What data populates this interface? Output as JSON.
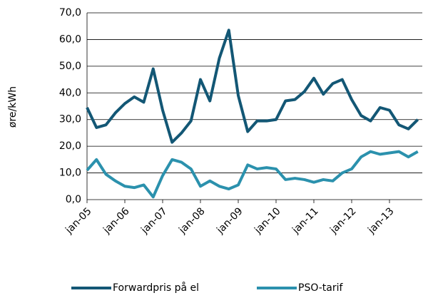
{
  "chart_data": {
    "type": "line",
    "y_label": "øre/kWh",
    "categories": [
      "jan-05",
      null,
      null,
      null,
      "jan-06",
      null,
      null,
      null,
      "jan-07",
      null,
      null,
      null,
      "jan-08",
      null,
      null,
      null,
      "jan-09",
      null,
      null,
      null,
      "jan-10",
      null,
      null,
      null,
      "jan-11",
      null,
      null,
      null,
      "jan-12",
      null,
      null,
      null,
      "jan-13",
      null,
      null,
      null
    ],
    "series": [
      {
        "name": "Forwardpris på el",
        "color": "#135775",
        "values": [
          34.5,
          27,
          28,
          32.5,
          36,
          38.5,
          36.5,
          49,
          33.5,
          21.5,
          25,
          29.5,
          45,
          37,
          53,
          63.5,
          39,
          25.5,
          29.5,
          29.5,
          30,
          37,
          37.5,
          40.5,
          45.5,
          39.5,
          43.5,
          45,
          37.5,
          31.5,
          29.5,
          34.5,
          33.5,
          28,
          26.5,
          30
        ]
      },
      {
        "name": "PSO-tarif",
        "color": "#2b91ad",
        "values": [
          11,
          15,
          9.5,
          7,
          5,
          4.5,
          5.5,
          1,
          9,
          15,
          14,
          11.5,
          5,
          7,
          5,
          4,
          5.5,
          13,
          11.5,
          12,
          11.5,
          7.5,
          8,
          7.5,
          6.5,
          7.5,
          7,
          10,
          11.5,
          16,
          18,
          17,
          17.5,
          18,
          16,
          18
        ]
      }
    ],
    "ylim": [
      0,
      70
    ],
    "yticks": [
      {
        "value": 0,
        "label": "0,0"
      },
      {
        "value": 10,
        "label": "10,0"
      },
      {
        "value": 20,
        "label": "20,0"
      },
      {
        "value": 30,
        "label": "30,0"
      },
      {
        "value": 40,
        "label": "40,0"
      },
      {
        "value": 50,
        "label": "50,0"
      },
      {
        "value": 60,
        "label": "60,0"
      },
      {
        "value": 70,
        "label": "70,0"
      }
    ],
    "grid": true,
    "legend": "bottom"
  }
}
